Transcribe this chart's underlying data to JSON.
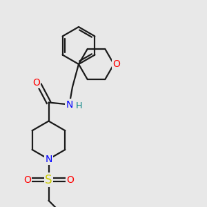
{
  "background_color": "#e8e8e8",
  "bond_color": "#1a1a1a",
  "atom_colors": {
    "O": "#ff0000",
    "N_amide": "#0000ff",
    "N_pip": "#0000ff",
    "H": "#008080",
    "S": "#cccc00",
    "O_sulfonyl": "#ff0000",
    "C": "#1a1a1a"
  },
  "font_size_atom": 10,
  "figsize": [
    3.0,
    3.0
  ],
  "dpi": 100
}
